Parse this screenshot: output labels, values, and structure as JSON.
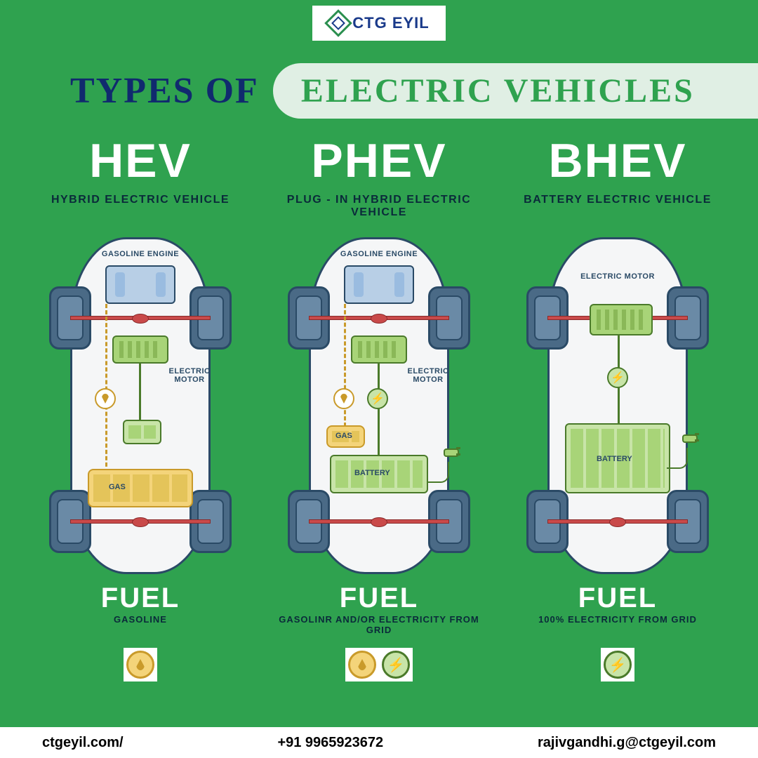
{
  "colors": {
    "page_bg": "#2fa24f",
    "title_a": "#102a6e",
    "pill_bg": "#e0efe4",
    "title_b": "#2fa24f",
    "dark_text": "#0a2a3a",
    "white": "#ffffff"
  },
  "logo": {
    "text": "CTG EYIL"
  },
  "title": {
    "a": "TYPES OF",
    "b": "ELECTRIC VEHICLES"
  },
  "vehicles": [
    {
      "abbr": "HEV",
      "full": "HYBRID ELECTRIC VEHICLE",
      "diagram": {
        "engine_label": "GASOLINE ENGINE",
        "motor_label": "ELECTRIC MOTOR",
        "gas_label": "GAS",
        "has_engine": true,
        "has_plug": false,
        "has_bolt": false,
        "small_gas": false
      },
      "fuel_hdr": "FUEL",
      "fuel_sub": "GASOLINE",
      "icons": [
        "oil"
      ]
    },
    {
      "abbr": "PHEV",
      "full": "PLUG - IN HYBRID ELECTRIC VEHICLE",
      "diagram": {
        "engine_label": "GASOLINE ENGINE",
        "motor_label": "ELECTRIC MOTOR",
        "gas_label": "GAS",
        "battery_label": "BATTERY",
        "has_engine": true,
        "has_plug": true,
        "has_bolt": true,
        "small_gas": true
      },
      "fuel_hdr": "FUEL",
      "fuel_sub": "GASOLINR AND/OR ELECTRICITY FROM GRID",
      "icons": [
        "oil",
        "elec"
      ]
    },
    {
      "abbr": "BHEV",
      "full": "BATTERY ELECTRIC VEHICLE",
      "diagram": {
        "motor_label": "ELECTRIC MOTOR",
        "battery_label": "BATTERY",
        "has_engine": false,
        "has_plug": true,
        "has_bolt": true,
        "small_gas": false
      },
      "fuel_hdr": "FUEL",
      "fuel_sub": "100% ELECTRICITY FROM GRID",
      "icons": [
        "elec"
      ]
    }
  ],
  "footer": {
    "site": "ctgeyil.com/",
    "phone": "+91 9965923672",
    "email": "rajivgandhi.g@ctgeyil.com"
  }
}
